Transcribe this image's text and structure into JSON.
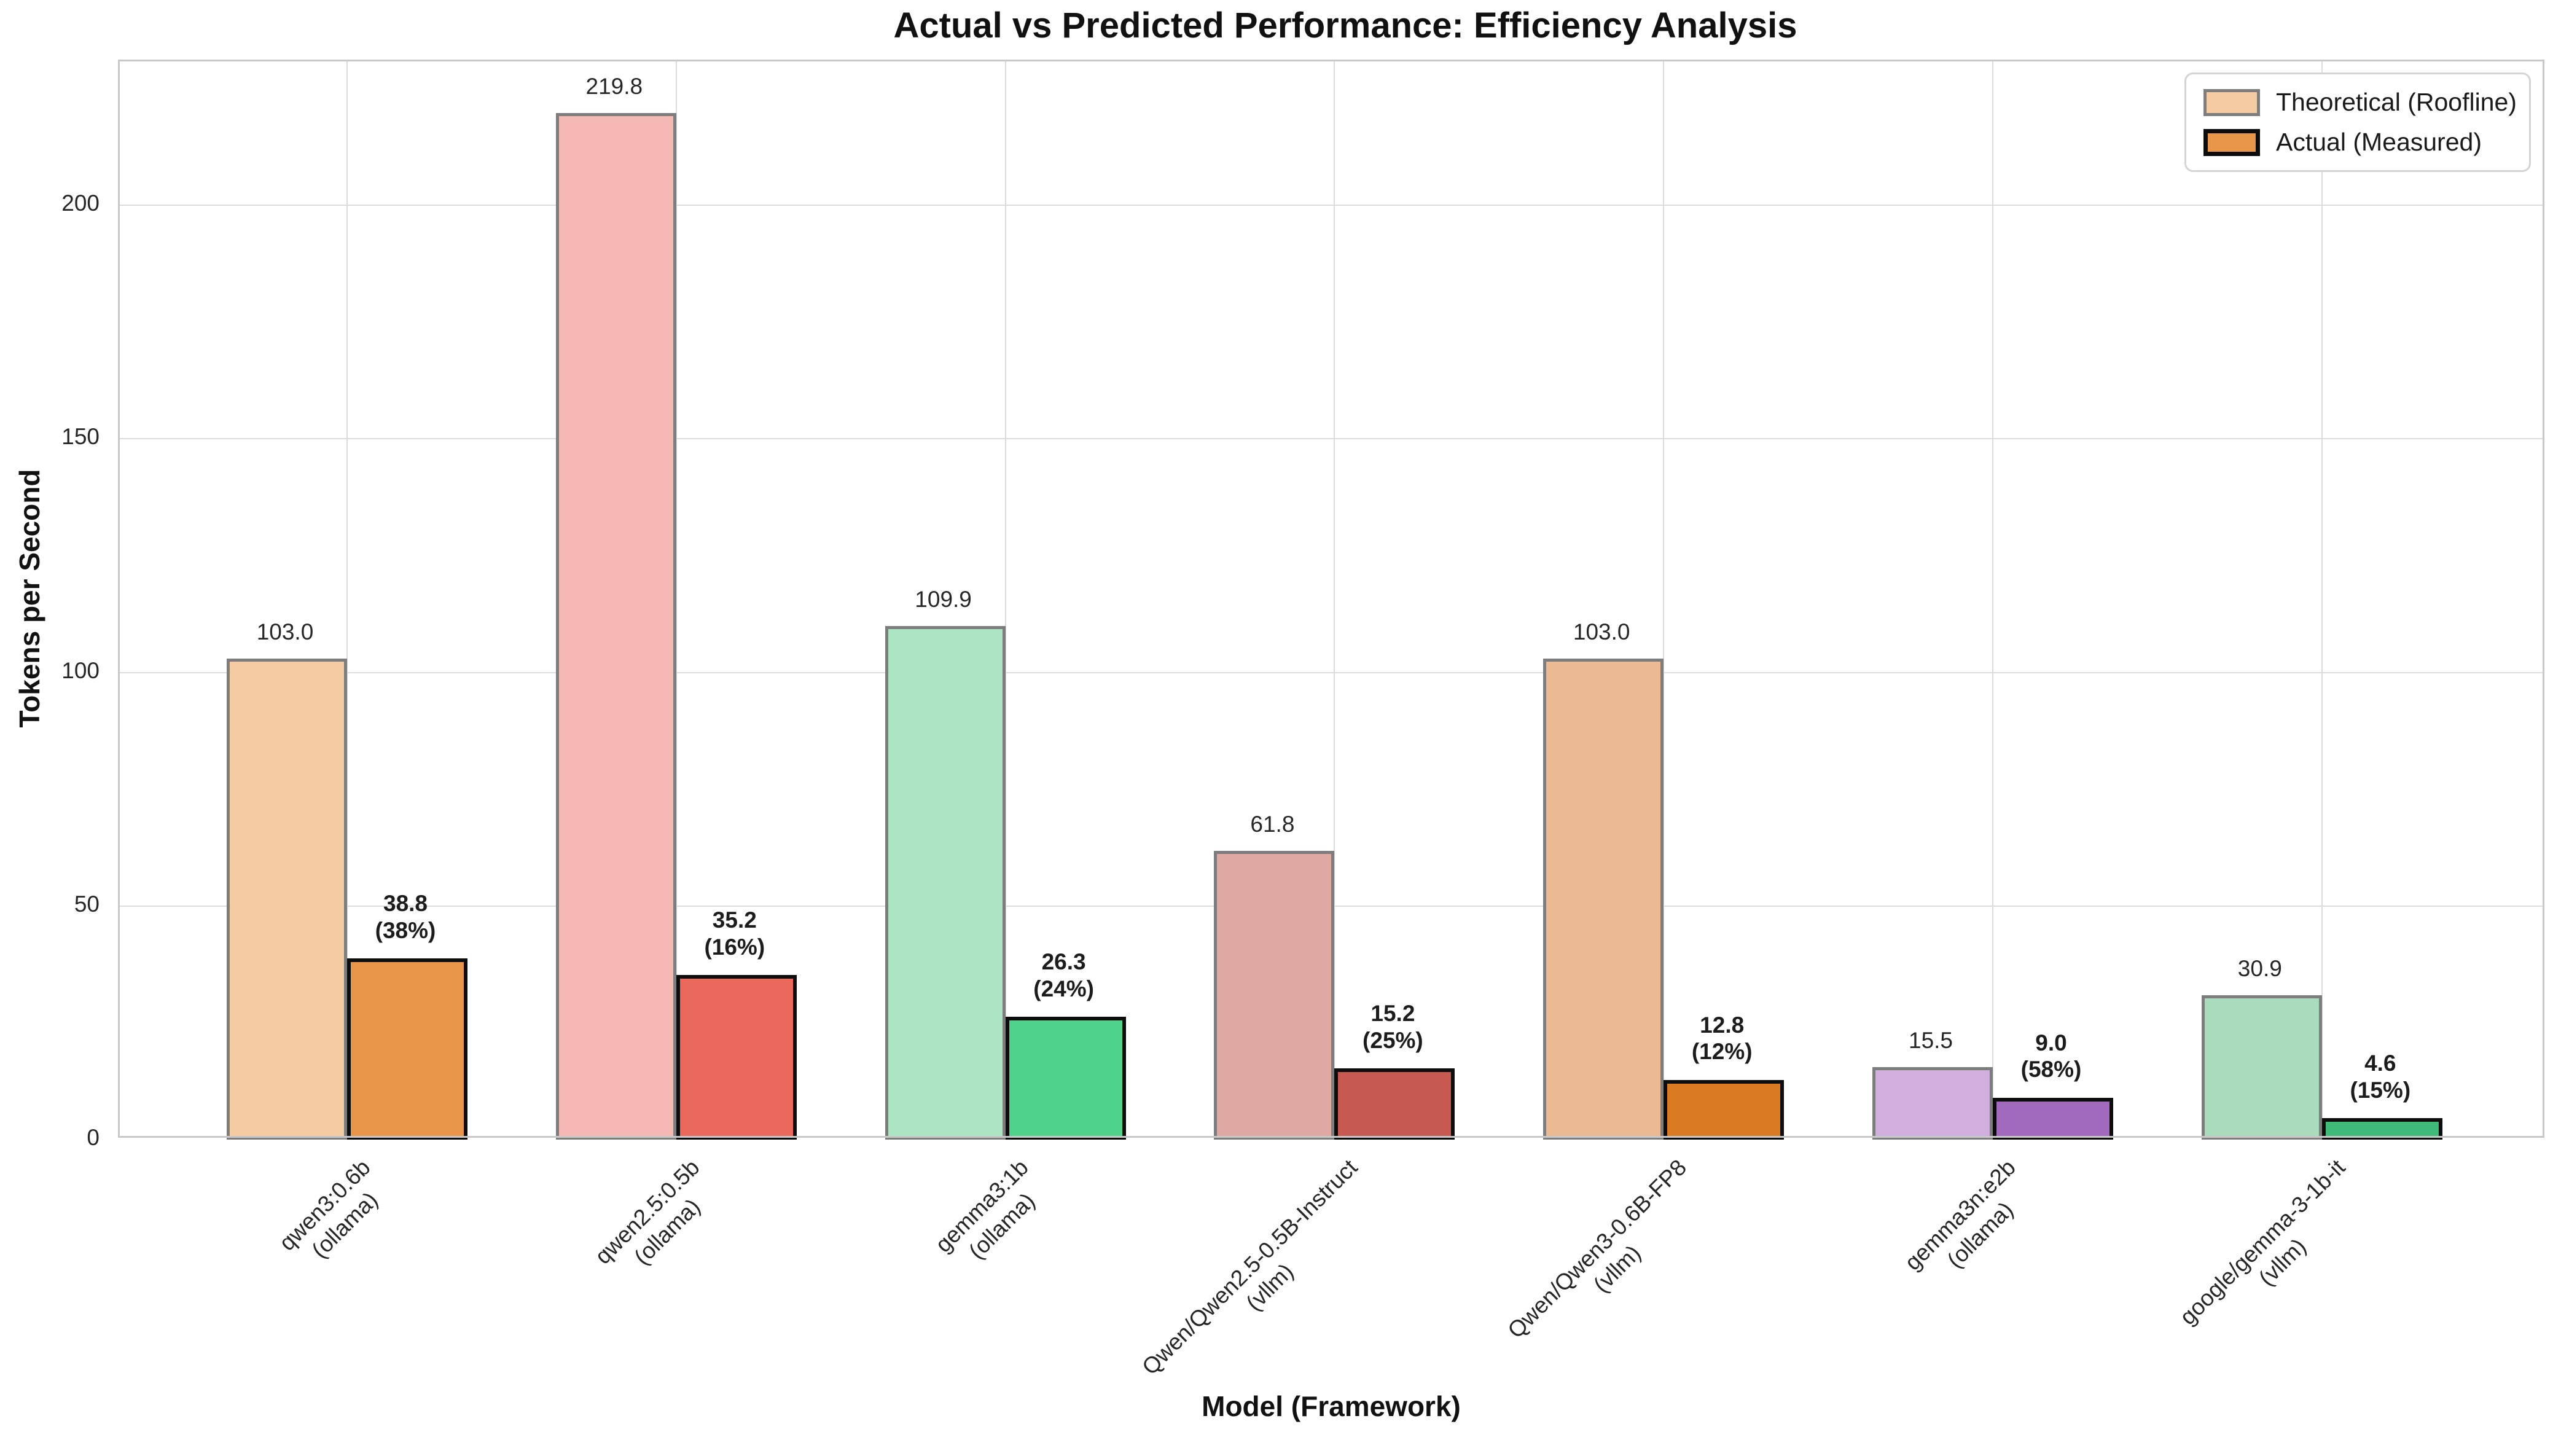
{
  "title": "Actual vs Predicted Performance: Efficiency Analysis",
  "axes": {
    "ylabel": "Tokens per Second",
    "xlabel": "Model (Framework)",
    "yticks": [
      "0",
      "50",
      "100",
      "150",
      "200"
    ]
  },
  "legend": {
    "items": [
      {
        "label": "Theoretical (Roofline)",
        "fill": "#f5cba4",
        "edge": "#7d7d7d"
      },
      {
        "label": "Actual (Measured)",
        "fill": "#e8964a",
        "edge": "#0d0d0d"
      }
    ]
  },
  "chart_data": {
    "type": "bar",
    "title": "Actual vs Predicted Performance: Efficiency Analysis",
    "xlabel": "Model (Framework)",
    "ylabel": "Tokens per Second",
    "ylim": [
      0,
      230.8
    ],
    "grid": true,
    "legend_position": "upper right",
    "categories": [
      "qwen3:0.6b (ollama)",
      "qwen2.5:0.5b (ollama)",
      "gemma3:1b (ollama)",
      "Qwen/Qwen2.5-0.5B-Instruct (vllm)",
      "Qwen/Qwen3-0.6B-FP8 (vllm)",
      "gemma3n:e2b (ollama)",
      "google/gemma-3-1b-it (vllm)"
    ],
    "series": [
      {
        "name": "Theoretical (Roofline)",
        "values": [
          103.0,
          219.8,
          109.9,
          61.8,
          103.0,
          15.5,
          30.9
        ]
      },
      {
        "name": "Actual (Measured)",
        "values": [
          38.8,
          35.2,
          26.3,
          15.2,
          12.8,
          9.0,
          4.6
        ]
      }
    ],
    "actual_efficiency_pct": [
      38,
      16,
      24,
      25,
      12,
      58,
      15
    ]
  },
  "groups": [
    {
      "model": "qwen3:0.6b",
      "framework": "(ollama)",
      "theo_label": "103.0",
      "actual_label": "38.8",
      "pct_label": "(38%)",
      "theo_fill": "#f5cba4",
      "actual_fill": "#e8964a"
    },
    {
      "model": "qwen2.5:0.5b",
      "framework": "(ollama)",
      "theo_label": "219.8",
      "actual_label": "35.2",
      "pct_label": "(16%)",
      "theo_fill": "#f5b8b2",
      "actual_fill": "#ea685c"
    },
    {
      "model": "gemma3:1b",
      "framework": "(ollama)",
      "theo_label": "109.9",
      "actual_label": "26.3",
      "pct_label": "(24%)",
      "theo_fill": "#ade5c2",
      "actual_fill": "#4fd38a"
    },
    {
      "model": "Qwen/Qwen2.5-0.5B-Instruct",
      "framework": "(vllm)",
      "theo_label": "61.8",
      "actual_label": "15.2",
      "pct_label": "(25%)",
      "theo_fill": "#dfa8a3",
      "actual_fill": "#c65a50"
    },
    {
      "model": "Qwen/Qwen3-0.6B-FP8",
      "framework": "(vllm)",
      "theo_label": "103.0",
      "actual_label": "12.8",
      "pct_label": "(12%)",
      "theo_fill": "#ebba92",
      "actual_fill": "#da7a23"
    },
    {
      "model": "gemma3n:e2b",
      "framework": "(ollama)",
      "theo_label": "15.5",
      "actual_label": "9.0",
      "pct_label": "(58%)",
      "theo_fill": "#cfb0dc",
      "actual_fill": "#a26abc"
    },
    {
      "model": "google/gemma-3-1b-it",
      "framework": "(vllm)",
      "theo_label": "30.9",
      "actual_label": "4.6",
      "pct_label": "(15%)",
      "theo_fill": "#a9dcbd",
      "actual_fill": "#40ba77"
    }
  ]
}
